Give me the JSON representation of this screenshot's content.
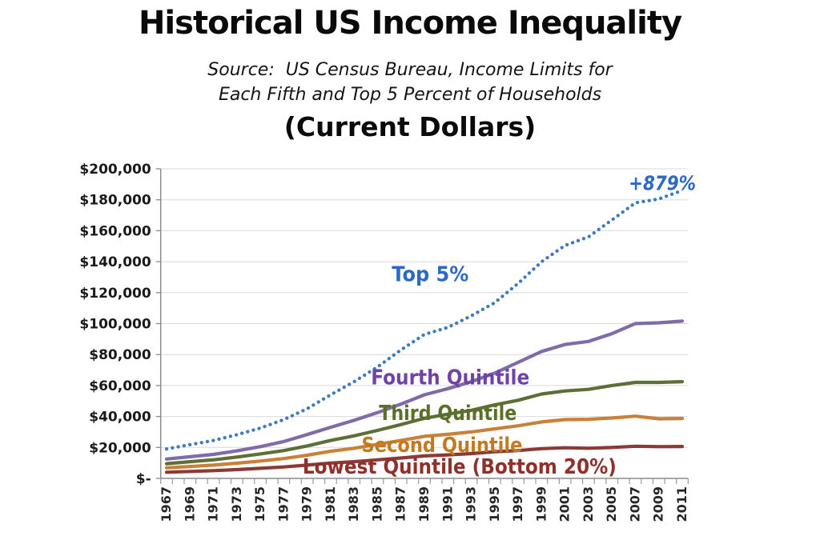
{
  "header": {
    "title": "Historical US Income Inequality",
    "subtitle_line1": "Source:  US Census Bureau, Income Limits for",
    "subtitle_line2": "Each Fifth and Top 5 Percent of Households",
    "units_label": "(Current Dollars)"
  },
  "chart_data": {
    "type": "line",
    "title": "Historical US Income Inequality (Current Dollars)",
    "xlabel": "",
    "ylabel": "",
    "grid": true,
    "legend": "inline-labels",
    "xlim": [
      1967,
      2011
    ],
    "ylim": [
      0,
      200000
    ],
    "x": [
      1967,
      1969,
      1971,
      1973,
      1975,
      1977,
      1979,
      1981,
      1983,
      1985,
      1987,
      1989,
      1991,
      1993,
      1995,
      1997,
      1999,
      2001,
      2003,
      2005,
      2007,
      2009,
      2011
    ],
    "x_tick_labels": [
      "1967",
      "1969",
      "1971",
      "1973",
      "1975",
      "1977",
      "1979",
      "1981",
      "1983",
      "1985",
      "1987",
      "1989",
      "1991",
      "1993",
      "1995",
      "1997",
      "1999",
      "2001",
      "2003",
      "2005",
      "2007",
      "2009",
      "2011"
    ],
    "y_ticks": [
      {
        "value": 0,
        "label": "$-"
      },
      {
        "value": 20000,
        "label": "$20,000"
      },
      {
        "value": 40000,
        "label": "$40,000"
      },
      {
        "value": 60000,
        "label": "$60,000"
      },
      {
        "value": 80000,
        "label": "$80,000"
      },
      {
        "value": 100000,
        "label": "$100,000"
      },
      {
        "value": 120000,
        "label": "$120,000"
      },
      {
        "value": 140000,
        "label": "$140,000"
      },
      {
        "value": 160000,
        "label": "$160,000"
      },
      {
        "value": 180000,
        "label": "$180,000"
      },
      {
        "value": 200000,
        "label": "$200,000"
      }
    ],
    "series": [
      {
        "name": "Top 5%",
        "style": "dotted",
        "color": "#3E7BBE",
        "label_color": "#2D68CB",
        "label_year": 1989.5,
        "label_value": 132000,
        "values": [
          19000,
          21800,
          24500,
          28200,
          32500,
          38000,
          45000,
          54000,
          62500,
          72000,
          83000,
          93000,
          97500,
          105000,
          113500,
          126000,
          140000,
          150500,
          156000,
          167000,
          178000,
          180500,
          186000
        ]
      },
      {
        "name": "Fourth Quintile",
        "style": "solid",
        "color": "#7E6BA8",
        "label_color": "#6F42A8",
        "label_year": 1991.2,
        "label_value": 65500,
        "values": [
          12500,
          14000,
          15500,
          17800,
          20500,
          23800,
          28300,
          33000,
          37500,
          42500,
          48000,
          54000,
          58000,
          62500,
          68000,
          75000,
          82000,
          86500,
          88500,
          93500,
          100000,
          100500,
          101600
        ]
      },
      {
        "name": "Third Quintile",
        "style": "solid",
        "color": "#5D6F36",
        "label_color": "#5A7028",
        "label_year": 1991,
        "label_value": 42500,
        "values": [
          9500,
          10800,
          12000,
          13800,
          15800,
          18000,
          21000,
          24500,
          27500,
          31000,
          34800,
          38800,
          41500,
          44000,
          47500,
          50500,
          54500,
          56500,
          57500,
          60000,
          62000,
          62000,
          62500
        ]
      },
      {
        "name": "Second Quintile",
        "style": "solid",
        "color": "#C98038",
        "label_color": "#C27A20",
        "label_year": 1990.5,
        "label_value": 21800,
        "values": [
          6800,
          7700,
          8600,
          9800,
          11200,
          12800,
          15000,
          17500,
          19500,
          22000,
          24500,
          27200,
          28500,
          30000,
          32000,
          34000,
          36500,
          38000,
          38200,
          39000,
          40200,
          38500,
          38700
        ]
      },
      {
        "name": "Lowest Quintile (Bottom 20%)",
        "style": "solid",
        "color": "#8C3A36",
        "label_color": "#8F302A",
        "label_year": 1992,
        "label_value": 7800,
        "values": [
          4000,
          4500,
          5000,
          5700,
          6500,
          7400,
          8600,
          9900,
          10800,
          12000,
          13200,
          14500,
          15200,
          16000,
          17200,
          18000,
          19200,
          19800,
          19500,
          20000,
          20800,
          20500,
          20600
        ]
      }
    ],
    "annotation": {
      "text": "+879%",
      "year": 2009.3,
      "value": 190500,
      "color": "#2D68CB"
    }
  }
}
